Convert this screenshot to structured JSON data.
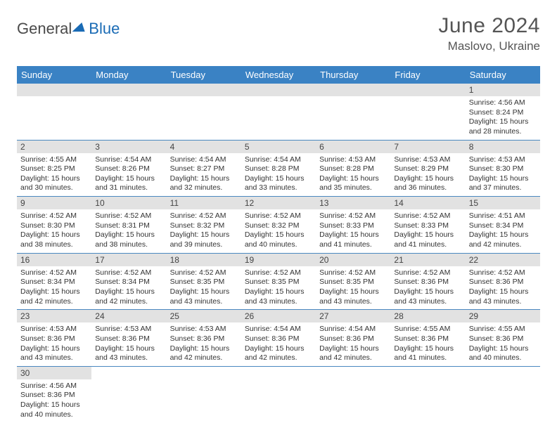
{
  "brand": {
    "part1": "General",
    "part2": "Blue"
  },
  "title": "June 2024",
  "location": "Maslovo, Ukraine",
  "colors": {
    "header_bg": "#3a82c4",
    "header_text": "#ffffff",
    "cell_border": "#4a88c0",
    "daynum_bg": "#e2e2e2",
    "text": "#333333",
    "brand_gray": "#4a4a4a",
    "brand_blue": "#1a6bb5"
  },
  "weekdays": [
    "Sunday",
    "Monday",
    "Tuesday",
    "Wednesday",
    "Thursday",
    "Friday",
    "Saturday"
  ],
  "layout": {
    "columns": 7,
    "rows": 6,
    "first_weekday_index": 6,
    "days_in_month": 30
  },
  "days": {
    "1": {
      "sunrise": "4:56 AM",
      "sunset": "8:24 PM",
      "daylight": "15 hours and 28 minutes."
    },
    "2": {
      "sunrise": "4:55 AM",
      "sunset": "8:25 PM",
      "daylight": "15 hours and 30 minutes."
    },
    "3": {
      "sunrise": "4:54 AM",
      "sunset": "8:26 PM",
      "daylight": "15 hours and 31 minutes."
    },
    "4": {
      "sunrise": "4:54 AM",
      "sunset": "8:27 PM",
      "daylight": "15 hours and 32 minutes."
    },
    "5": {
      "sunrise": "4:54 AM",
      "sunset": "8:28 PM",
      "daylight": "15 hours and 33 minutes."
    },
    "6": {
      "sunrise": "4:53 AM",
      "sunset": "8:28 PM",
      "daylight": "15 hours and 35 minutes."
    },
    "7": {
      "sunrise": "4:53 AM",
      "sunset": "8:29 PM",
      "daylight": "15 hours and 36 minutes."
    },
    "8": {
      "sunrise": "4:53 AM",
      "sunset": "8:30 PM",
      "daylight": "15 hours and 37 minutes."
    },
    "9": {
      "sunrise": "4:52 AM",
      "sunset": "8:30 PM",
      "daylight": "15 hours and 38 minutes."
    },
    "10": {
      "sunrise": "4:52 AM",
      "sunset": "8:31 PM",
      "daylight": "15 hours and 38 minutes."
    },
    "11": {
      "sunrise": "4:52 AM",
      "sunset": "8:32 PM",
      "daylight": "15 hours and 39 minutes."
    },
    "12": {
      "sunrise": "4:52 AM",
      "sunset": "8:32 PM",
      "daylight": "15 hours and 40 minutes."
    },
    "13": {
      "sunrise": "4:52 AM",
      "sunset": "8:33 PM",
      "daylight": "15 hours and 41 minutes."
    },
    "14": {
      "sunrise": "4:52 AM",
      "sunset": "8:33 PM",
      "daylight": "15 hours and 41 minutes."
    },
    "15": {
      "sunrise": "4:51 AM",
      "sunset": "8:34 PM",
      "daylight": "15 hours and 42 minutes."
    },
    "16": {
      "sunrise": "4:52 AM",
      "sunset": "8:34 PM",
      "daylight": "15 hours and 42 minutes."
    },
    "17": {
      "sunrise": "4:52 AM",
      "sunset": "8:34 PM",
      "daylight": "15 hours and 42 minutes."
    },
    "18": {
      "sunrise": "4:52 AM",
      "sunset": "8:35 PM",
      "daylight": "15 hours and 43 minutes."
    },
    "19": {
      "sunrise": "4:52 AM",
      "sunset": "8:35 PM",
      "daylight": "15 hours and 43 minutes."
    },
    "20": {
      "sunrise": "4:52 AM",
      "sunset": "8:35 PM",
      "daylight": "15 hours and 43 minutes."
    },
    "21": {
      "sunrise": "4:52 AM",
      "sunset": "8:36 PM",
      "daylight": "15 hours and 43 minutes."
    },
    "22": {
      "sunrise": "4:52 AM",
      "sunset": "8:36 PM",
      "daylight": "15 hours and 43 minutes."
    },
    "23": {
      "sunrise": "4:53 AM",
      "sunset": "8:36 PM",
      "daylight": "15 hours and 43 minutes."
    },
    "24": {
      "sunrise": "4:53 AM",
      "sunset": "8:36 PM",
      "daylight": "15 hours and 43 minutes."
    },
    "25": {
      "sunrise": "4:53 AM",
      "sunset": "8:36 PM",
      "daylight": "15 hours and 42 minutes."
    },
    "26": {
      "sunrise": "4:54 AM",
      "sunset": "8:36 PM",
      "daylight": "15 hours and 42 minutes."
    },
    "27": {
      "sunrise": "4:54 AM",
      "sunset": "8:36 PM",
      "daylight": "15 hours and 42 minutes."
    },
    "28": {
      "sunrise": "4:55 AM",
      "sunset": "8:36 PM",
      "daylight": "15 hours and 41 minutes."
    },
    "29": {
      "sunrise": "4:55 AM",
      "sunset": "8:36 PM",
      "daylight": "15 hours and 40 minutes."
    },
    "30": {
      "sunrise": "4:56 AM",
      "sunset": "8:36 PM",
      "daylight": "15 hours and 40 minutes."
    }
  },
  "labels": {
    "sunrise": "Sunrise:",
    "sunset": "Sunset:",
    "daylight": "Daylight:"
  }
}
